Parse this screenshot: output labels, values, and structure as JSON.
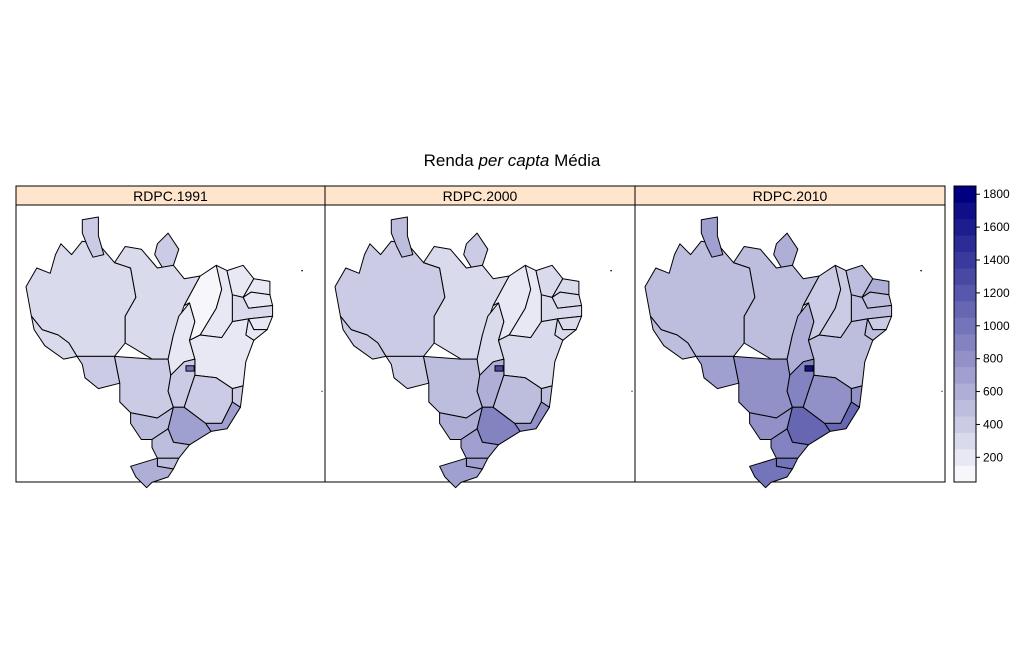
{
  "chart_data": {
    "type": "choropleth",
    "title": {
      "parts": [
        {
          "text": "Renda ",
          "italic": false
        },
        {
          "text": "per capta",
          "italic": true
        },
        {
          "text": " Média",
          "italic": false
        }
      ]
    },
    "panels": [
      {
        "label": "RDPC.1991",
        "values": {
          "AC": 330,
          "AM": 340,
          "RR": 420,
          "AP": 350,
          "PA": 300,
          "TO": 180,
          "RO": 380,
          "MT": 420,
          "MS": 470,
          "GO": 410,
          "DF": 1000,
          "MA": 140,
          "PI": 150,
          "CE": 190,
          "RN": 240,
          "PB": 200,
          "PE": 250,
          "AL": 210,
          "SE": 240,
          "BA": 230,
          "MG": 360,
          "ES": 420,
          "RJ": 650,
          "SP": 720,
          "PR": 480,
          "SC": 500,
          "RS": 560
        }
      },
      {
        "label": "RDPC.2000",
        "values": {
          "AC": 380,
          "AM": 350,
          "RR": 470,
          "AP": 400,
          "PA": 330,
          "TO": 290,
          "RO": 440,
          "MT": 530,
          "MS": 560,
          "GO": 560,
          "DF": 1300,
          "MA": 200,
          "PI": 220,
          "CE": 270,
          "RN": 310,
          "PB": 270,
          "PE": 310,
          "AL": 250,
          "SE": 320,
          "BA": 310,
          "MG": 500,
          "ES": 540,
          "RJ": 800,
          "SP": 870,
          "PR": 680,
          "SC": 700,
          "RS": 720
        }
      },
      {
        "label": "RDPC.2010",
        "values": {
          "AC": 520,
          "AM": 510,
          "RR": 660,
          "AP": 560,
          "PA": 450,
          "TO": 590,
          "RO": 670,
          "MT": 820,
          "MS": 820,
          "GO": 890,
          "DF": 1720,
          "MA": 360,
          "PI": 420,
          "CE": 460,
          "RN": 550,
          "PB": 480,
          "PE": 520,
          "AL": 430,
          "SE": 520,
          "BA": 500,
          "MG": 750,
          "ES": 830,
          "RJ": 1050,
          "SP": 1090,
          "PR": 900,
          "SC": 980,
          "RS": 960
        }
      }
    ],
    "colorkey": {
      "range": [
        50,
        1850
      ],
      "ticks": [
        "200",
        "400",
        "600",
        "800",
        "1000",
        "1200",
        "1400",
        "1600",
        "1800"
      ],
      "low_color": "#f7f7fb",
      "high_color": "#000080",
      "bins": 18
    }
  }
}
